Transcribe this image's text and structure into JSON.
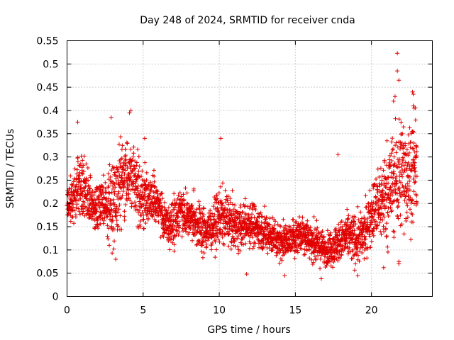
{
  "chart_data": {
    "type": "scatter",
    "title": "Day 248 of 2024, SRMTID for receiver cnda",
    "xlabel": "GPS time / hours",
    "ylabel": "SRMTID / TECUs",
    "xlim": [
      0,
      24
    ],
    "ylim": [
      0,
      0.55
    ],
    "x_ticks": [
      0,
      5,
      10,
      15,
      20
    ],
    "x_tick_labels": [
      "0",
      "5",
      "10",
      "15",
      "20"
    ],
    "y_ticks": [
      0,
      0.05,
      0.1,
      0.15,
      0.2,
      0.25,
      0.3,
      0.35,
      0.4,
      0.45,
      0.5,
      0.55
    ],
    "y_tick_labels": [
      "0",
      "0.05",
      "0.1",
      "0.15",
      "0.2",
      "0.25",
      "0.3",
      "0.35",
      "0.4",
      "0.45",
      "0.5",
      "0.55"
    ],
    "grid": true,
    "marker": "+",
    "color": "#e00000",
    "series": [
      {
        "name": "SRMTID",
        "x_range": [
          0,
          23
        ],
        "n_points": 3000,
        "trend_x": [
          0,
          0.5,
          1,
          1.5,
          2,
          2.5,
          3,
          3.5,
          4,
          4.5,
          5,
          5.5,
          6,
          6.5,
          7,
          7.5,
          8,
          8.5,
          9,
          9.5,
          10,
          10.5,
          11,
          11.5,
          12,
          12.5,
          13,
          13.5,
          14,
          14.5,
          15,
          15.5,
          16,
          16.5,
          17,
          17.5,
          18,
          18.5,
          19,
          19.5,
          20,
          20.5,
          21,
          21.5,
          22,
          22.5,
          23
        ],
        "trend_y": [
          0.19,
          0.22,
          0.25,
          0.2,
          0.19,
          0.2,
          0.2,
          0.24,
          0.27,
          0.24,
          0.21,
          0.21,
          0.2,
          0.15,
          0.16,
          0.19,
          0.17,
          0.16,
          0.14,
          0.15,
          0.17,
          0.17,
          0.15,
          0.15,
          0.16,
          0.15,
          0.14,
          0.13,
          0.12,
          0.12,
          0.13,
          0.14,
          0.12,
          0.11,
          0.1,
          0.11,
          0.12,
          0.13,
          0.12,
          0.13,
          0.18,
          0.2,
          0.22,
          0.25,
          0.27,
          0.26,
          0.28
        ],
        "spread_y": [
          0.04,
          0.06,
          0.07,
          0.05,
          0.05,
          0.06,
          0.08,
          0.08,
          0.09,
          0.07,
          0.06,
          0.05,
          0.05,
          0.04,
          0.05,
          0.05,
          0.04,
          0.05,
          0.05,
          0.04,
          0.06,
          0.05,
          0.05,
          0.04,
          0.05,
          0.04,
          0.04,
          0.04,
          0.04,
          0.03,
          0.04,
          0.04,
          0.04,
          0.04,
          0.03,
          0.04,
          0.04,
          0.05,
          0.05,
          0.05,
          0.06,
          0.08,
          0.1,
          0.11,
          0.12,
          0.11,
          0.09
        ],
        "outliers": [
          {
            "x": 21.7,
            "y": 0.523
          },
          {
            "x": 21.7,
            "y": 0.485
          },
          {
            "x": 21.8,
            "y": 0.465
          },
          {
            "x": 22.7,
            "y": 0.44
          },
          {
            "x": 22.75,
            "y": 0.435
          },
          {
            "x": 22.75,
            "y": 0.41
          },
          {
            "x": 22.8,
            "y": 0.405
          },
          {
            "x": 21.55,
            "y": 0.43
          },
          {
            "x": 21.45,
            "y": 0.42
          },
          {
            "x": 4.2,
            "y": 0.4
          },
          {
            "x": 4.1,
            "y": 0.395
          },
          {
            "x": 10.1,
            "y": 0.34
          },
          {
            "x": 5.1,
            "y": 0.34
          },
          {
            "x": 0.7,
            "y": 0.375
          },
          {
            "x": 2.9,
            "y": 0.385
          },
          {
            "x": 17.8,
            "y": 0.305
          },
          {
            "x": 16.7,
            "y": 0.038
          },
          {
            "x": 19.1,
            "y": 0.045
          },
          {
            "x": 14.3,
            "y": 0.045
          },
          {
            "x": 11.8,
            "y": 0.048
          },
          {
            "x": 21.8,
            "y": 0.07
          },
          {
            "x": 21.8,
            "y": 0.075
          },
          {
            "x": 20.8,
            "y": 0.062
          },
          {
            "x": 3.2,
            "y": 0.08
          }
        ]
      }
    ]
  }
}
